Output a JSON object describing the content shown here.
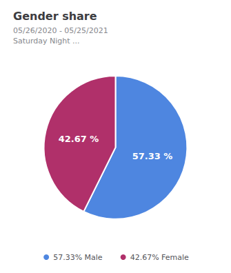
{
  "chart_data": {
    "type": "pie",
    "title": "Gender share",
    "subtitle": "05/26/2020 - 05/25/2021\nSaturday Night ...",
    "categories": [
      "57.33% Male",
      "42.67% Female"
    ],
    "values": [
      57.33,
      42.67
    ],
    "value_labels": [
      "57.33 %",
      "42.67 %"
    ],
    "colors": [
      "#4e86e0",
      "#b0306a"
    ],
    "data_labels": true,
    "legend": "bottom"
  }
}
